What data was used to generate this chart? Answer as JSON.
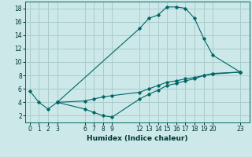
{
  "background_color": "#cce8e8",
  "grid_color": "#aacccc",
  "line_color": "#006666",
  "xlabel": "Humidex (Indice chaleur)",
  "ylim": [
    1,
    19
  ],
  "xlim": [
    -0.5,
    24
  ],
  "xticks": [
    0,
    1,
    2,
    3,
    6,
    7,
    8,
    9,
    12,
    13,
    14,
    15,
    16,
    17,
    18,
    19,
    20,
    23
  ],
  "yticks": [
    2,
    4,
    6,
    8,
    10,
    12,
    14,
    16,
    18
  ],
  "series": [
    {
      "x": [
        0,
        1,
        2,
        3,
        12,
        13,
        14,
        15,
        16,
        17,
        18,
        19,
        20,
        23
      ],
      "y": [
        5.7,
        4.0,
        3.0,
        4.0,
        15.0,
        16.5,
        17.0,
        18.2,
        18.2,
        18.0,
        16.5,
        13.5,
        11.0,
        8.5
      ]
    },
    {
      "x": [
        3,
        6,
        7,
        8,
        9,
        12,
        13,
        14,
        15,
        16,
        17,
        18,
        19,
        20,
        23
      ],
      "y": [
        4.0,
        3.0,
        2.5,
        2.0,
        1.8,
        4.5,
        5.2,
        5.8,
        6.5,
        6.8,
        7.2,
        7.5,
        8.0,
        8.3,
        8.5
      ]
    },
    {
      "x": [
        3,
        6,
        7,
        8,
        9,
        12,
        13,
        14,
        15,
        16,
        17,
        18,
        19,
        20,
        23
      ],
      "y": [
        4.0,
        4.2,
        4.5,
        4.8,
        5.0,
        5.5,
        6.0,
        6.5,
        7.0,
        7.2,
        7.5,
        7.7,
        8.0,
        8.2,
        8.5
      ]
    }
  ]
}
